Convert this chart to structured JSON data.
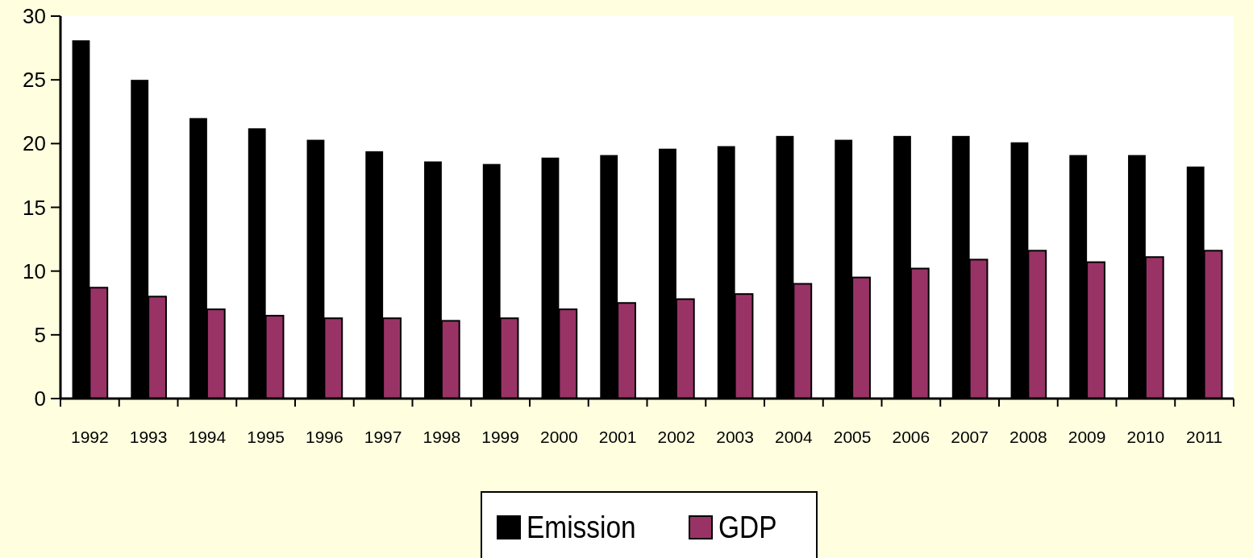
{
  "chart_data": {
    "type": "bar",
    "categories": [
      "1992",
      "1993",
      "1994",
      "1995",
      "1996",
      "1997",
      "1998",
      "1999",
      "2000",
      "2001",
      "2002",
      "2003",
      "2004",
      "2005",
      "2006",
      "2007",
      "2008",
      "2009",
      "2010",
      "2011"
    ],
    "series": [
      {
        "name": "Emission",
        "color": "#000000",
        "values": [
          28.1,
          25.0,
          22.0,
          21.2,
          20.3,
          19.4,
          18.6,
          18.4,
          18.9,
          19.1,
          19.6,
          19.8,
          20.6,
          20.3,
          20.6,
          20.6,
          20.1,
          19.1,
          19.1,
          18.2
        ]
      },
      {
        "name": "GDP",
        "color": "#993366",
        "values": [
          8.7,
          8.0,
          7.0,
          6.5,
          6.3,
          6.3,
          6.1,
          6.3,
          7.0,
          7.5,
          7.8,
          8.2,
          9.0,
          9.5,
          10.2,
          10.9,
          11.6,
          10.7,
          11.1,
          11.6
        ]
      }
    ],
    "ylim": [
      0,
      30
    ],
    "yticks": [
      0,
      5,
      10,
      15,
      20,
      25,
      30
    ],
    "grid": false,
    "legend": "bottom"
  }
}
